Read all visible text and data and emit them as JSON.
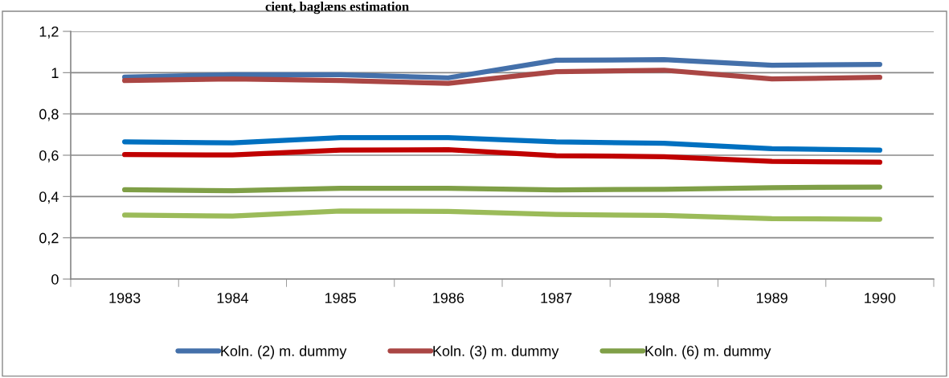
{
  "chart_data": {
    "type": "line",
    "title": "cient, baglæns estimation",
    "categories": [
      "1983",
      "1984",
      "1985",
      "1986",
      "1987",
      "1988",
      "1989",
      "1990"
    ],
    "series": [
      {
        "name": "Koln. (2) m. dummy",
        "color": "#4470aa",
        "values": [
          0.978,
          0.99,
          0.99,
          0.975,
          1.06,
          1.063,
          1.036,
          1.04
        ]
      },
      {
        "name": "Koln. (3) m. dummy",
        "color": "#aa4644",
        "values": [
          0.962,
          0.97,
          0.962,
          0.948,
          1.005,
          1.012,
          0.97,
          0.977
        ]
      },
      {
        "color": "#0070c0",
        "values": [
          0.665,
          0.66,
          0.685,
          0.685,
          0.665,
          0.658,
          0.632,
          0.625
        ]
      },
      {
        "color": "#c00000",
        "values": [
          0.603,
          0.601,
          0.625,
          0.627,
          0.598,
          0.593,
          0.57,
          0.566
        ]
      },
      {
        "name": "Koln. (6) m. dummy",
        "color": "#7f9f47",
        "values": [
          0.433,
          0.428,
          0.44,
          0.44,
          0.432,
          0.435,
          0.443,
          0.446
        ]
      },
      {
        "color": "#9bbb59",
        "values": [
          0.31,
          0.305,
          0.33,
          0.328,
          0.313,
          0.308,
          0.293,
          0.29
        ]
      }
    ],
    "ylim": [
      0,
      1.2
    ],
    "yticks": [
      {
        "value": 0,
        "label": "0"
      },
      {
        "value": 0.2,
        "label": "0,2"
      },
      {
        "value": 0.4,
        "label": "0,4"
      },
      {
        "value": 0.6,
        "label": "0,6"
      },
      {
        "value": 0.8,
        "label": "0,8"
      },
      {
        "value": 1,
        "label": "1"
      },
      {
        "value": 1.2,
        "label": "1,2"
      }
    ],
    "grid": "y",
    "legend": "bottom",
    "marker": "none",
    "line_style": "solid"
  }
}
